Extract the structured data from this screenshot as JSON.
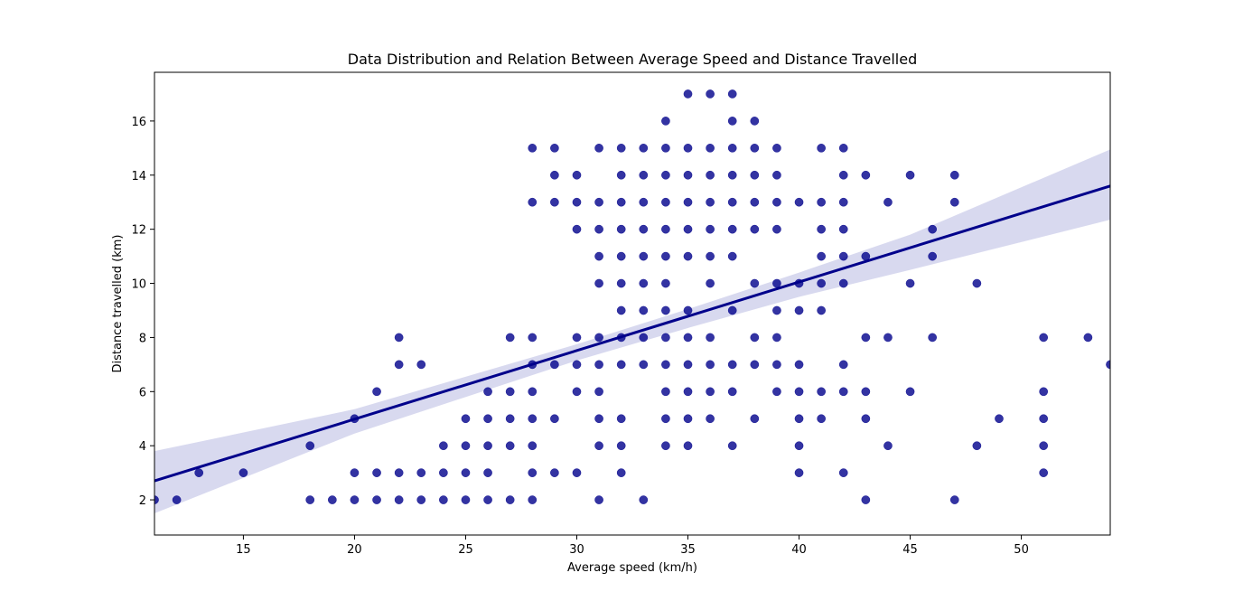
{
  "chart_data": {
    "type": "scatter",
    "title": "Data Distribution and Relation Between Average Speed and Distance Travelled",
    "xlabel": "Average speed (km/h)",
    "ylabel": "Distance travelled (km)",
    "xlim": [
      11,
      54
    ],
    "ylim": [
      0.7,
      17.8
    ],
    "xticks": [
      15,
      20,
      25,
      30,
      35,
      40,
      45,
      50
    ],
    "yticks": [
      2,
      4,
      6,
      8,
      10,
      12,
      14,
      16
    ],
    "grid": false,
    "colors": {
      "points": "#00008b",
      "line": "#00008b",
      "band": "#d8d9ef"
    },
    "regression": {
      "x": [
        11,
        54
      ],
      "y": [
        2.7,
        13.6
      ]
    },
    "confidence_band": {
      "x": [
        11,
        20,
        30,
        35,
        40,
        45,
        54
      ],
      "upper": [
        3.8,
        5.35,
        7.75,
        9.05,
        10.4,
        11.8,
        14.95
      ],
      "lower": [
        1.5,
        4.45,
        7.15,
        8.35,
        9.5,
        10.5,
        12.35
      ]
    },
    "points": [
      [
        11,
        2
      ],
      [
        12,
        2
      ],
      [
        13,
        3
      ],
      [
        15,
        3
      ],
      [
        18,
        2
      ],
      [
        18,
        4
      ],
      [
        19,
        2
      ],
      [
        20,
        2
      ],
      [
        20,
        3
      ],
      [
        20,
        5
      ],
      [
        21,
        2
      ],
      [
        21,
        3
      ],
      [
        21,
        6
      ],
      [
        22,
        2
      ],
      [
        22,
        3
      ],
      [
        22,
        7
      ],
      [
        22,
        8
      ],
      [
        23,
        2
      ],
      [
        23,
        3
      ],
      [
        23,
        7
      ],
      [
        24,
        2
      ],
      [
        24,
        3
      ],
      [
        24,
        4
      ],
      [
        25,
        2
      ],
      [
        25,
        3
      ],
      [
        25,
        4
      ],
      [
        25,
        5
      ],
      [
        26,
        2
      ],
      [
        26,
        3
      ],
      [
        26,
        4
      ],
      [
        26,
        5
      ],
      [
        26,
        6
      ],
      [
        27,
        2
      ],
      [
        27,
        4
      ],
      [
        27,
        5
      ],
      [
        27,
        6
      ],
      [
        27,
        8
      ],
      [
        28,
        2
      ],
      [
        28,
        3
      ],
      [
        28,
        4
      ],
      [
        28,
        5
      ],
      [
        28,
        6
      ],
      [
        28,
        7
      ],
      [
        28,
        8
      ],
      [
        28,
        13
      ],
      [
        28,
        15
      ],
      [
        29,
        3
      ],
      [
        29,
        5
      ],
      [
        29,
        7
      ],
      [
        29,
        13
      ],
      [
        29,
        14
      ],
      [
        29,
        15
      ],
      [
        30,
        3
      ],
      [
        30,
        6
      ],
      [
        30,
        7
      ],
      [
        30,
        8
      ],
      [
        30,
        12
      ],
      [
        30,
        13
      ],
      [
        30,
        14
      ],
      [
        31,
        2
      ],
      [
        31,
        4
      ],
      [
        31,
        5
      ],
      [
        31,
        6
      ],
      [
        31,
        7
      ],
      [
        31,
        8
      ],
      [
        31,
        10
      ],
      [
        31,
        11
      ],
      [
        31,
        12
      ],
      [
        31,
        13
      ],
      [
        31,
        15
      ],
      [
        32,
        3
      ],
      [
        32,
        4
      ],
      [
        32,
        5
      ],
      [
        32,
        7
      ],
      [
        32,
        8
      ],
      [
        32,
        9
      ],
      [
        32,
        10
      ],
      [
        32,
        11
      ],
      [
        32,
        12
      ],
      [
        32,
        13
      ],
      [
        32,
        14
      ],
      [
        32,
        15
      ],
      [
        33,
        2
      ],
      [
        33,
        7
      ],
      [
        33,
        8
      ],
      [
        33,
        9
      ],
      [
        33,
        10
      ],
      [
        33,
        11
      ],
      [
        33,
        12
      ],
      [
        33,
        13
      ],
      [
        33,
        14
      ],
      [
        33,
        15
      ],
      [
        34,
        4
      ],
      [
        34,
        5
      ],
      [
        34,
        6
      ],
      [
        34,
        7
      ],
      [
        34,
        8
      ],
      [
        34,
        9
      ],
      [
        34,
        10
      ],
      [
        34,
        11
      ],
      [
        34,
        12
      ],
      [
        34,
        13
      ],
      [
        34,
        14
      ],
      [
        34,
        15
      ],
      [
        34,
        16
      ],
      [
        35,
        4
      ],
      [
        35,
        5
      ],
      [
        35,
        6
      ],
      [
        35,
        7
      ],
      [
        35,
        8
      ],
      [
        35,
        9
      ],
      [
        35,
        11
      ],
      [
        35,
        12
      ],
      [
        35,
        13
      ],
      [
        35,
        14
      ],
      [
        35,
        15
      ],
      [
        35,
        17
      ],
      [
        36,
        5
      ],
      [
        36,
        6
      ],
      [
        36,
        7
      ],
      [
        36,
        8
      ],
      [
        36,
        10
      ],
      [
        36,
        11
      ],
      [
        36,
        12
      ],
      [
        36,
        13
      ],
      [
        36,
        14
      ],
      [
        36,
        15
      ],
      [
        36,
        17
      ],
      [
        37,
        4
      ],
      [
        37,
        6
      ],
      [
        37,
        7
      ],
      [
        37,
        9
      ],
      [
        37,
        11
      ],
      [
        37,
        12
      ],
      [
        37,
        13
      ],
      [
        37,
        14
      ],
      [
        37,
        15
      ],
      [
        37,
        16
      ],
      [
        37,
        17
      ],
      [
        38,
        5
      ],
      [
        38,
        7
      ],
      [
        38,
        8
      ],
      [
        38,
        10
      ],
      [
        38,
        12
      ],
      [
        38,
        13
      ],
      [
        38,
        14
      ],
      [
        38,
        15
      ],
      [
        38,
        16
      ],
      [
        39,
        6
      ],
      [
        39,
        7
      ],
      [
        39,
        8
      ],
      [
        39,
        9
      ],
      [
        39,
        10
      ],
      [
        39,
        12
      ],
      [
        39,
        13
      ],
      [
        39,
        14
      ],
      [
        39,
        15
      ],
      [
        40,
        3
      ],
      [
        40,
        4
      ],
      [
        40,
        5
      ],
      [
        40,
        6
      ],
      [
        40,
        7
      ],
      [
        40,
        9
      ],
      [
        40,
        10
      ],
      [
        40,
        13
      ],
      [
        41,
        5
      ],
      [
        41,
        6
      ],
      [
        41,
        9
      ],
      [
        41,
        10
      ],
      [
        41,
        11
      ],
      [
        41,
        12
      ],
      [
        41,
        13
      ],
      [
        41,
        15
      ],
      [
        42,
        3
      ],
      [
        42,
        6
      ],
      [
        42,
        7
      ],
      [
        42,
        10
      ],
      [
        42,
        11
      ],
      [
        42,
        12
      ],
      [
        42,
        13
      ],
      [
        42,
        14
      ],
      [
        42,
        15
      ],
      [
        43,
        2
      ],
      [
        43,
        5
      ],
      [
        43,
        6
      ],
      [
        43,
        8
      ],
      [
        43,
        11
      ],
      [
        43,
        14
      ],
      [
        44,
        4
      ],
      [
        44,
        8
      ],
      [
        44,
        13
      ],
      [
        45,
        6
      ],
      [
        45,
        10
      ],
      [
        45,
        14
      ],
      [
        46,
        8
      ],
      [
        46,
        11
      ],
      [
        46,
        12
      ],
      [
        47,
        2
      ],
      [
        47,
        13
      ],
      [
        47,
        14
      ],
      [
        48,
        4
      ],
      [
        48,
        10
      ],
      [
        49,
        5
      ],
      [
        51,
        3
      ],
      [
        51,
        4
      ],
      [
        51,
        5
      ],
      [
        51,
        6
      ],
      [
        51,
        8
      ],
      [
        53,
        8
      ],
      [
        54,
        7
      ]
    ]
  }
}
